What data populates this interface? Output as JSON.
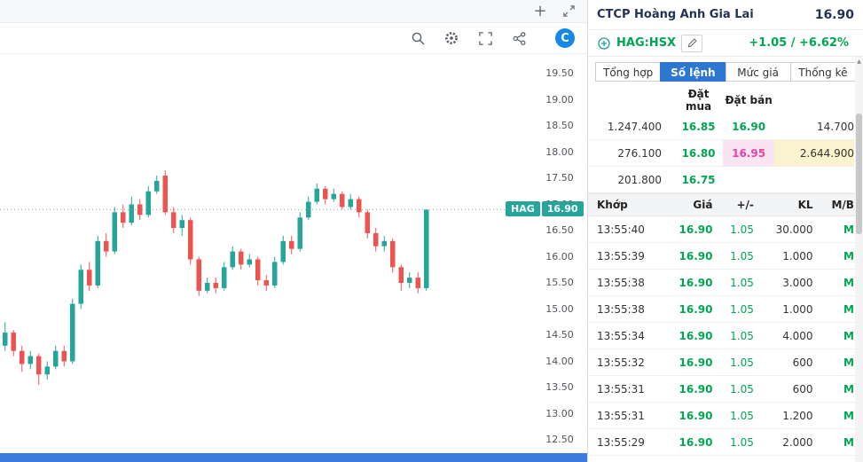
{
  "colors": {
    "up_text": "#00a651",
    "up_candle": "#26a69a",
    "down_candle": "#ef5350",
    "badge": "#26a69a",
    "tab_active": "#2e77d0",
    "pink_text": "#e445a0",
    "pink_bg": "#fbe4f2",
    "yellow_bg": "#faf3cd",
    "brand_blue": "#1588e8",
    "bottom_bar": "#3b7ae0"
  },
  "chart": {
    "plus": "+",
    "brand": "C",
    "icons": [
      "plus-icon",
      "expand-icon",
      "zoom-icon",
      "settings-icon",
      "fullscreen-icon",
      "share-icon",
      "brand-logo"
    ],
    "axis_ticks": [
      "19.50",
      "19.00",
      "18.50",
      "18.00",
      "17.50",
      "17.00",
      "16.50",
      "16.00",
      "15.50",
      "15.00",
      "14.50",
      "14.00",
      "13.50",
      "13.00",
      "12.50"
    ],
    "price_tag": {
      "symbol": "HAG",
      "price": "16.90"
    }
  },
  "chart_data": {
    "type": "candlestick",
    "symbol": "HAG",
    "current_price": 16.9,
    "ylim": [
      12.5,
      19.5
    ],
    "grid": false,
    "candles": [
      [
        14.3,
        14.75,
        14.2,
        14.55
      ],
      [
        14.55,
        14.6,
        14.1,
        14.2
      ],
      [
        14.2,
        14.3,
        13.8,
        13.95
      ],
      [
        13.95,
        14.2,
        13.85,
        14.1
      ],
      [
        14.1,
        14.15,
        13.55,
        13.75
      ],
      [
        13.75,
        14.0,
        13.65,
        13.9
      ],
      [
        13.9,
        14.3,
        13.85,
        14.2
      ],
      [
        14.2,
        14.3,
        13.9,
        14.0
      ],
      [
        14.0,
        15.2,
        13.95,
        15.1
      ],
      [
        15.1,
        15.85,
        15.0,
        15.75
      ],
      [
        15.75,
        15.9,
        15.35,
        15.45
      ],
      [
        15.45,
        16.4,
        15.4,
        16.3
      ],
      [
        16.3,
        16.45,
        16.0,
        16.1
      ],
      [
        16.1,
        16.95,
        16.05,
        16.85
      ],
      [
        16.85,
        17.0,
        16.55,
        16.65
      ],
      [
        16.65,
        17.15,
        16.6,
        17.0
      ],
      [
        17.0,
        17.1,
        16.7,
        16.8
      ],
      [
        16.8,
        17.35,
        16.75,
        17.25
      ],
      [
        17.25,
        17.55,
        17.2,
        17.45
      ],
      [
        17.55,
        17.65,
        16.8,
        16.85
      ],
      [
        16.85,
        16.95,
        16.45,
        16.55
      ],
      [
        16.55,
        16.8,
        16.4,
        16.7
      ],
      [
        16.7,
        16.75,
        15.85,
        15.95
      ],
      [
        15.95,
        16.0,
        15.25,
        15.35
      ],
      [
        15.35,
        15.6,
        15.3,
        15.5
      ],
      [
        15.5,
        15.6,
        15.3,
        15.4
      ],
      [
        15.4,
        15.9,
        15.35,
        15.8
      ],
      [
        15.8,
        16.2,
        15.75,
        16.1
      ],
      [
        16.1,
        16.15,
        15.75,
        15.85
      ],
      [
        15.85,
        16.05,
        15.8,
        15.95
      ],
      [
        15.95,
        16.0,
        15.45,
        15.55
      ],
      [
        15.55,
        15.65,
        15.35,
        15.45
      ],
      [
        15.45,
        16.0,
        15.4,
        15.9
      ],
      [
        15.9,
        16.4,
        15.85,
        16.3
      ],
      [
        16.3,
        16.4,
        16.05,
        16.15
      ],
      [
        16.15,
        16.85,
        16.1,
        16.75
      ],
      [
        16.75,
        17.15,
        16.7,
        17.05
      ],
      [
        17.05,
        17.4,
        17.0,
        17.3
      ],
      [
        17.3,
        17.35,
        17.0,
        17.1
      ],
      [
        17.1,
        17.3,
        17.05,
        17.2
      ],
      [
        17.2,
        17.25,
        16.9,
        16.95
      ],
      [
        16.95,
        17.2,
        16.9,
        17.1
      ],
      [
        17.1,
        17.15,
        16.75,
        16.85
      ],
      [
        16.85,
        16.9,
        16.35,
        16.45
      ],
      [
        16.45,
        16.55,
        16.1,
        16.2
      ],
      [
        16.2,
        16.4,
        16.1,
        16.3
      ],
      [
        16.3,
        16.35,
        15.7,
        15.8
      ],
      [
        15.8,
        15.85,
        15.35,
        15.5
      ],
      [
        15.5,
        15.7,
        15.4,
        15.6
      ],
      [
        15.6,
        15.7,
        15.3,
        15.4
      ],
      [
        15.4,
        16.9,
        15.35,
        16.9
      ]
    ]
  },
  "panel": {
    "company": "CTCP Hoàng Anh Gia Lai",
    "last_price": "16.90",
    "symbol": "HAG:HSX",
    "change": "+1.05 / +6.62%",
    "tabs": [
      "Tổng hợp",
      "Số lệnh",
      "Mức giá",
      "Thống kê"
    ],
    "active_tab": 1,
    "order_book": {
      "buy_header": "Đặt mua",
      "sell_header": "Đặt bán",
      "rows": [
        {
          "buy_vol": "1.247.400",
          "buy_price": "16.85",
          "sell_price": "16.90",
          "sell_vol": "14.700",
          "sell_price_style": "",
          "sell_vol_style": ""
        },
        {
          "buy_vol": "276.100",
          "buy_price": "16.80",
          "sell_price": "16.95",
          "sell_vol": "2.644.900",
          "sell_price_style": "pink",
          "sell_vol_style": "yellow"
        },
        {
          "buy_vol": "201.800",
          "buy_price": "16.75",
          "sell_price": "",
          "sell_vol": "",
          "sell_price_style": "",
          "sell_vol_style": ""
        }
      ]
    },
    "trades": {
      "headers": [
        "Khớp",
        "Giá",
        "+/-",
        "KL",
        "M/B"
      ],
      "rows": [
        {
          "time": "13:55:40",
          "price": "16.90",
          "change": "1.05",
          "volume": "30.000",
          "side": "M"
        },
        {
          "time": "13:55:39",
          "price": "16.90",
          "change": "1.05",
          "volume": "1.000",
          "side": "M"
        },
        {
          "time": "13:55:38",
          "price": "16.90",
          "change": "1.05",
          "volume": "3.000",
          "side": "M"
        },
        {
          "time": "13:55:38",
          "price": "16.90",
          "change": "1.05",
          "volume": "1.000",
          "side": "M"
        },
        {
          "time": "13:55:34",
          "price": "16.90",
          "change": "1.05",
          "volume": "4.000",
          "side": "M"
        },
        {
          "time": "13:55:32",
          "price": "16.90",
          "change": "1.05",
          "volume": "600",
          "side": "M"
        },
        {
          "time": "13:55:31",
          "price": "16.90",
          "change": "1.05",
          "volume": "600",
          "side": "M"
        },
        {
          "time": "13:55:31",
          "price": "16.90",
          "change": "1.05",
          "volume": "1.200",
          "side": "M"
        },
        {
          "time": "13:55:29",
          "price": "16.90",
          "change": "1.05",
          "volume": "2.000",
          "side": "M"
        }
      ]
    }
  }
}
